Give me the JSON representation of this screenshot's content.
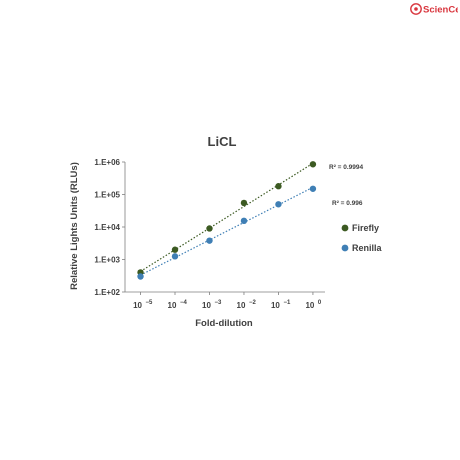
{
  "logo": {
    "text": "ScienCell",
    "color": "#d9363e"
  },
  "chart_data": {
    "type": "scatter",
    "title": "LiCL",
    "xlabel": "Fold-dilution",
    "ylabel": "Relative Lights Units (RLUs)",
    "x_scale": "log",
    "y_scale": "log",
    "x": [
      1e-05,
      0.0001,
      0.001,
      0.01,
      0.1,
      1
    ],
    "x_tick_base": "10",
    "x_tick_exponents": [
      "−5",
      "−4",
      "−3",
      "−2",
      "−1",
      "0"
    ],
    "ylim": [
      100,
      1000000
    ],
    "y_ticks": [
      100,
      1000,
      10000,
      100000,
      1000000
    ],
    "y_tick_labels": [
      "1.E+02",
      "1.E+03",
      "1.E+04",
      "1.E+05",
      "1.E+06"
    ],
    "grid": false,
    "legend_position": "right",
    "series": [
      {
        "name": "Firefly",
        "color": "#3c5a22",
        "values": [
          400,
          2000,
          9000,
          55000,
          180000,
          850000
        ],
        "trendline": "linear (log-log), dotted",
        "r2_label": "R² = 0.9994"
      },
      {
        "name": "Renilla",
        "color": "#3f7fb5",
        "values": [
          300,
          1250,
          3800,
          15500,
          50000,
          150000
        ],
        "trendline": "linear (log-log), dotted",
        "r2_label": "R² = 0.996"
      }
    ]
  }
}
